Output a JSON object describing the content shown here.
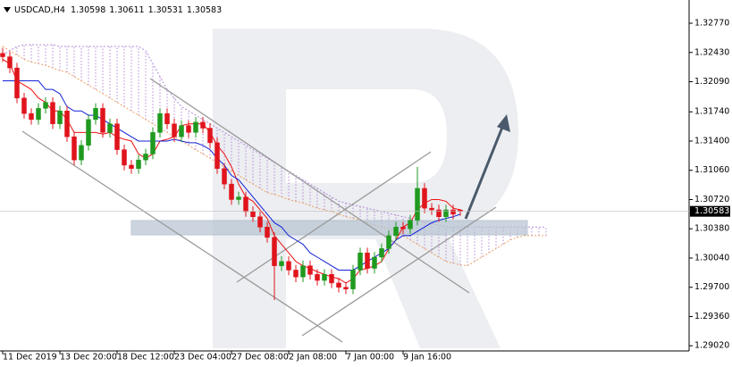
{
  "chart_data": {
    "type": "candlestick",
    "symbol": "USDCAD,H4",
    "categories": [
      "11 Dec 2019",
      null,
      null,
      null,
      null,
      null,
      null,
      null,
      "13 Dec 20:00",
      null,
      null,
      null,
      null,
      null,
      null,
      null,
      "18 Dec 12:00",
      null,
      null,
      null,
      null,
      null,
      null,
      null,
      "23 Dec 04:00",
      null,
      null,
      null,
      null,
      null,
      null,
      null,
      "27 Dec 08:00",
      null,
      null,
      null,
      null,
      null,
      null,
      null,
      "2 Jan 08:00",
      null,
      null,
      null,
      null,
      null,
      null,
      null,
      "7 Jan 00:00",
      null,
      null,
      null,
      null,
      null,
      null,
      null,
      "9 Jan 16:00",
      null,
      null,
      null,
      null,
      null,
      null,
      null,
      null
    ],
    "open": [
      1.3242,
      1.3238,
      1.3225,
      1.319,
      1.3172,
      1.3165,
      1.3178,
      1.3185,
      1.316,
      1.3175,
      1.3145,
      1.3118,
      1.3135,
      1.3165,
      1.3178,
      1.315,
      1.316,
      1.313,
      1.3112,
      1.3108,
      1.3118,
      1.3125,
      1.315,
      1.3172,
      1.316,
      1.3145,
      1.3158,
      1.315,
      1.3162,
      1.3155,
      1.3138,
      1.3108,
      1.309,
      1.3072,
      1.3075,
      1.3058,
      1.3052,
      1.304,
      1.3028,
      1.2995,
      1.3,
      1.299,
      1.2982,
      1.2995,
      1.2985,
      1.2978,
      1.2985,
      1.2975,
      1.297,
      1.2968,
      1.299,
      1.301,
      1.2992,
      1.3005,
      1.3015,
      1.303,
      1.304,
      1.3038,
      1.3048,
      1.3085,
      1.3062,
      1.306,
      1.3052,
      1.306,
      1.30598
    ],
    "high": [
      1.3248,
      1.3244,
      1.3231,
      1.3196,
      1.3178,
      1.3184,
      1.3191,
      1.3191,
      1.3181,
      1.3181,
      1.3151,
      1.3141,
      1.3171,
      1.3184,
      1.3184,
      1.3166,
      1.3166,
      1.3136,
      1.3118,
      1.3124,
      1.3131,
      1.3156,
      1.3178,
      1.3178,
      1.3166,
      1.3164,
      1.3164,
      1.3168,
      1.3168,
      1.3161,
      1.3144,
      1.3114,
      1.3096,
      1.3081,
      1.3081,
      1.3064,
      1.3058,
      1.3046,
      1.3034,
      1.3006,
      1.3006,
      1.2996,
      1.3001,
      1.3001,
      1.2991,
      1.2991,
      1.2991,
      1.2981,
      1.2976,
      1.2996,
      1.3016,
      1.3016,
      1.3011,
      1.3021,
      1.3036,
      1.3046,
      1.3046,
      1.3054,
      1.311,
      1.3091,
      1.3068,
      1.3066,
      1.3066,
      1.3066,
      1.30611
    ],
    "low": [
      1.3232,
      1.3219,
      1.3184,
      1.3166,
      1.3159,
      1.3159,
      1.3172,
      1.3154,
      1.3154,
      1.3139,
      1.3112,
      1.3112,
      1.3129,
      1.3159,
      1.3144,
      1.3144,
      1.3124,
      1.3106,
      1.3102,
      1.3102,
      1.3112,
      1.3119,
      1.3144,
      1.3154,
      1.3139,
      1.3139,
      1.3144,
      1.3144,
      1.3149,
      1.3132,
      1.3102,
      1.3084,
      1.3066,
      1.3066,
      1.3052,
      1.3046,
      1.3034,
      1.3022,
      1.2955,
      1.2989,
      1.2984,
      1.2976,
      1.2976,
      1.2979,
      1.2972,
      1.2972,
      1.2969,
      1.2964,
      1.2962,
      1.2962,
      1.2984,
      1.2986,
      1.2986,
      1.2999,
      1.3009,
      1.3024,
      1.3032,
      1.3032,
      1.3042,
      1.3056,
      1.3054,
      1.3046,
      1.3046,
      1.3049,
      1.30531
    ],
    "close": [
      1.3238,
      1.3225,
      1.319,
      1.3172,
      1.3165,
      1.3178,
      1.3185,
      1.316,
      1.3175,
      1.3145,
      1.3118,
      1.3135,
      1.3165,
      1.3178,
      1.315,
      1.316,
      1.313,
      1.3112,
      1.3108,
      1.3118,
      1.3125,
      1.315,
      1.3172,
      1.316,
      1.3145,
      1.3158,
      1.315,
      1.3162,
      1.3155,
      1.3138,
      1.3108,
      1.309,
      1.3072,
      1.3075,
      1.3058,
      1.3052,
      1.304,
      1.3028,
      1.2995,
      1.3,
      1.299,
      1.2982,
      1.2995,
      1.2985,
      1.2978,
      1.2985,
      1.2975,
      1.297,
      1.2968,
      1.299,
      1.301,
      1.2992,
      1.3005,
      1.3015,
      1.303,
      1.304,
      1.3038,
      1.3048,
      1.3085,
      1.3062,
      1.306,
      1.3052,
      1.306,
      1.3055,
      1.30583
    ],
    "up_color": "#1f9a1f",
    "down_color": "#e0141c",
    "series": [
      {
        "color": "#ee1111",
        "values": [
          1.3235,
          1.323,
          1.321,
          1.3205,
          1.32,
          1.319,
          1.3185,
          1.3175,
          1.3175,
          1.3165,
          1.315,
          1.315,
          1.315,
          1.315,
          1.3148,
          1.315,
          1.3145,
          1.3142,
          1.314,
          1.3125,
          1.312,
          1.3125,
          1.314,
          1.3142,
          1.3145,
          1.3158,
          1.316,
          1.316,
          1.316,
          1.315,
          1.3135,
          1.3125,
          1.311,
          1.309,
          1.3075,
          1.307,
          1.306,
          1.305,
          1.303,
          1.302,
          1.301,
          1.3,
          1.2995,
          1.2992,
          1.2988,
          1.2985,
          1.2982,
          1.298,
          1.2975,
          1.298,
          1.299,
          1.2992,
          1.2995,
          1.3,
          1.3015,
          1.3025,
          1.304,
          1.3045,
          1.306,
          1.3068,
          1.3072,
          1.3072,
          1.307,
          1.3062,
          1.306
        ]
      },
      {
        "color": "#1020d8",
        "values": [
          1.321,
          1.321,
          1.321,
          1.321,
          1.321,
          1.321,
          1.32,
          1.32,
          1.3195,
          1.318,
          1.3175,
          1.3175,
          1.317,
          1.317,
          1.3165,
          1.316,
          1.3155,
          1.315,
          1.3145,
          1.314,
          1.314,
          1.314,
          1.314,
          1.314,
          1.3142,
          1.314,
          1.3138,
          1.3138,
          1.3135,
          1.313,
          1.312,
          1.3112,
          1.31,
          1.3095,
          1.3085,
          1.3075,
          1.3065,
          1.3055,
          1.3045,
          1.304,
          1.303,
          1.3025,
          1.302,
          1.301,
          1.3005,
          1.3,
          1.2995,
          1.299,
          1.299,
          1.299,
          1.2995,
          1.3,
          1.3005,
          1.301,
          1.3015,
          1.3025,
          1.303,
          1.303,
          1.3035,
          1.304,
          1.3045,
          1.3048,
          1.305,
          1.3052,
          1.3055
        ]
      }
    ],
    "cloud": {
      "color_a": "#f0a060",
      "color_b": "#b48ad8",
      "span_a": [
        1.325,
        1.3245,
        1.324,
        1.3235,
        1.3232,
        1.323,
        1.3228,
        1.3225,
        1.3222,
        1.322,
        1.3215,
        1.321,
        1.3205,
        1.32,
        1.3195,
        1.319,
        1.3185,
        1.318,
        1.3175,
        1.317,
        1.3165,
        1.316,
        1.3155,
        1.315,
        1.3145,
        1.314,
        1.3135,
        1.313,
        1.3125,
        1.312,
        1.3115,
        1.311,
        1.3105,
        1.31,
        1.3095,
        1.309,
        1.3085,
        1.308,
        1.3078,
        1.3075,
        1.3072,
        1.307,
        1.3068,
        1.3065,
        1.3062,
        1.306,
        1.3058,
        1.3055,
        1.3052,
        1.305,
        1.3048,
        1.3045,
        1.3042,
        1.304,
        1.3038,
        1.3035,
        1.303,
        1.3025,
        1.302,
        1.3015,
        1.301,
        1.3005,
        1.3,
        1.2998,
        1.2996,
        1.2995,
        1.3,
        1.3005,
        1.301,
        1.3015,
        1.302,
        1.3025,
        1.3028,
        1.303,
        1.303,
        1.303,
        1.303
      ],
      "span_b": [
        1.324,
        1.3245,
        1.325,
        1.3252,
        1.3252,
        1.3252,
        1.3252,
        1.3252,
        1.325,
        1.325,
        1.325,
        1.325,
        1.325,
        1.325,
        1.325,
        1.325,
        1.325,
        1.325,
        1.325,
        1.325,
        1.3245,
        1.323,
        1.3215,
        1.32,
        1.319,
        1.318,
        1.3175,
        1.317,
        1.3165,
        1.316,
        1.3155,
        1.315,
        1.3145,
        1.314,
        1.3135,
        1.313,
        1.3125,
        1.312,
        1.3115,
        1.311,
        1.3105,
        1.31,
        1.3095,
        1.309,
        1.3085,
        1.308,
        1.3075,
        1.307,
        1.3068,
        1.3066,
        1.3064,
        1.3062,
        1.306,
        1.3058,
        1.3056,
        1.3054,
        1.3052,
        1.305,
        1.3048,
        1.3046,
        1.3044,
        1.3042,
        1.304,
        1.304,
        1.304,
        1.304,
        1.304,
        1.304,
        1.304,
        1.304,
        1.304,
        1.304,
        1.304,
        1.304,
        1.304,
        1.304,
        1.304
      ]
    },
    "ylim": [
      1.2896,
      1.3304
    ],
    "yticks": [
      {
        "value": 1.3277,
        "label": "1.32770"
      },
      {
        "value": 1.3243,
        "label": "1.32430"
      },
      {
        "value": 1.3209,
        "label": "1.32090"
      },
      {
        "value": 1.3174,
        "label": "1.31740"
      },
      {
        "value": 1.314,
        "label": "1.31400"
      },
      {
        "value": 1.3106,
        "label": "1.31060"
      },
      {
        "value": 1.3072,
        "label": "1.30720"
      },
      {
        "value": 1.3038,
        "label": "1.30380"
      },
      {
        "value": 1.3004,
        "label": "1.30040"
      },
      {
        "value": 1.297,
        "label": "1.29700"
      },
      {
        "value": 1.2936,
        "label": "1.29360"
      },
      {
        "value": 1.2902,
        "label": "1.29020"
      }
    ]
  }
}
